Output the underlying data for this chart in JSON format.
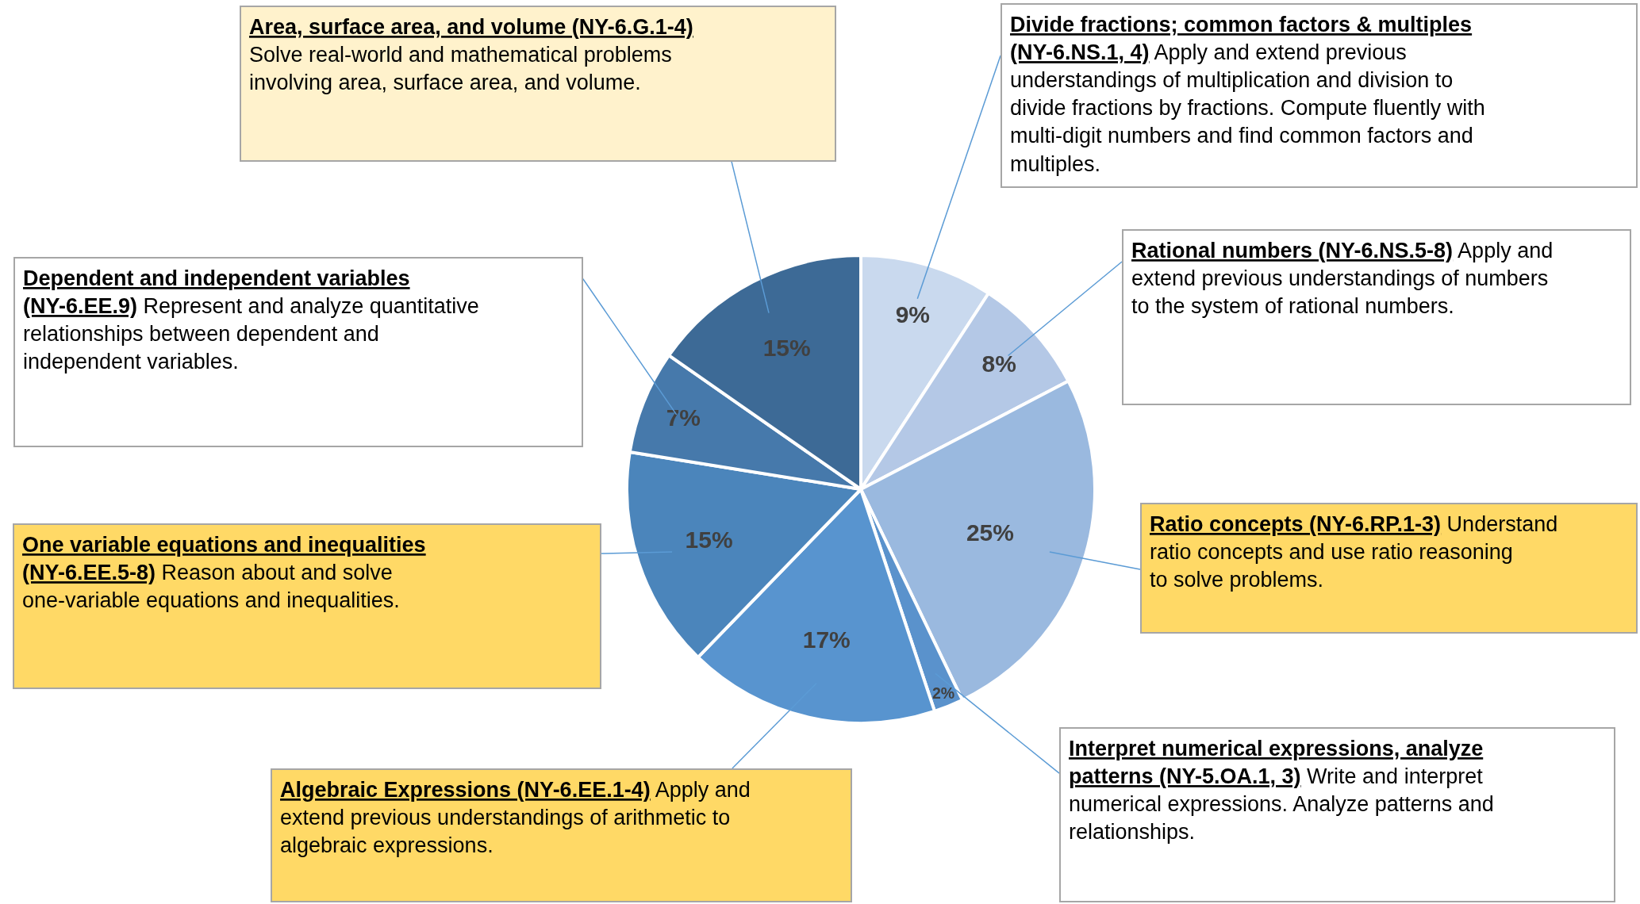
{
  "chart_data": {
    "type": "pie",
    "categories": [
      "Divide fractions; common factors & multiples (NY-6.NS.1, 4)",
      "Rational numbers (NY-6.NS.5-8)",
      "Ratio concepts (NY-6.RP.1-3)",
      "Interpret numerical expressions, analyze patterns (NY-5.OA.1, 3)",
      "Algebraic Expressions (NY-6.EE.1-4)",
      "One variable equations and inequalities (NY-6.EE.5-8)",
      "Dependent and independent variables (NY-6.EE.9)",
      "Area, surface area, and volume (NY-6.G.1-4)"
    ],
    "values": [
      9,
      8,
      25,
      2,
      17,
      15,
      7,
      15
    ],
    "value_labels": [
      "9%",
      "8%",
      "25%",
      "2%",
      "17%",
      "15%",
      "7%",
      "15%"
    ],
    "colors": [
      "#c9d9ee",
      "#b4c8e6",
      "#9ab9df",
      "#5a92cc",
      "#5894cf",
      "#4b85bb",
      "#4679ab",
      "#3d6a96"
    ],
    "annotations": [
      "Apply and extend previous understandings of multiplication and division to divide fractions by fractions.  Compute fluently with multi-digit numbers and find common factors and multiples.",
      "Apply and extend previous understandings of numbers to the system of rational numbers.",
      "Understand ratio concepts and use ratio reasoning to solve problems.",
      "Write and interpret numerical expressions. Analyze patterns and relationships.",
      "Apply and extend previous understandings of arithmetic to algebraic expressions.",
      "Reason about and solve one-variable equations and inequalities.",
      "Represent and analyze quantitative relationships between dependent and independent variables.",
      "Solve real-world and mathematical problems involving area, surface area, and volume."
    ],
    "legend": false
  }
}
